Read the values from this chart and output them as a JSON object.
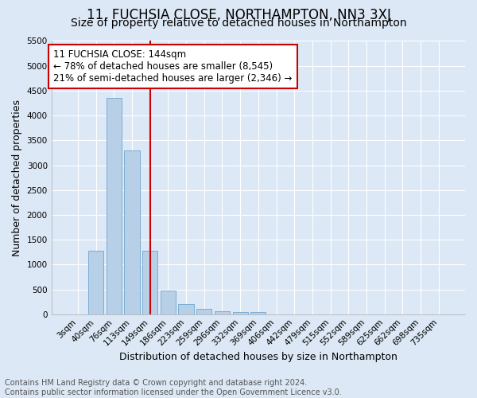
{
  "title": "11, FUCHSIA CLOSE, NORTHAMPTON, NN3 3XJ",
  "subtitle": "Size of property relative to detached houses in Northampton",
  "xlabel": "Distribution of detached houses by size in Northampton",
  "ylabel": "Number of detached properties",
  "footnote": "Contains HM Land Registry data © Crown copyright and database right 2024.\nContains public sector information licensed under the Open Government Licence v3.0.",
  "bar_labels": [
    "3sqm",
    "40sqm",
    "76sqm",
    "113sqm",
    "149sqm",
    "186sqm",
    "223sqm",
    "259sqm",
    "296sqm",
    "332sqm",
    "369sqm",
    "406sqm",
    "442sqm",
    "479sqm",
    "515sqm",
    "552sqm",
    "589sqm",
    "625sqm",
    "662sqm",
    "698sqm",
    "735sqm"
  ],
  "bar_values": [
    0,
    1270,
    4350,
    3300,
    1270,
    480,
    200,
    100,
    65,
    50,
    50,
    0,
    0,
    0,
    0,
    0,
    0,
    0,
    0,
    0,
    0
  ],
  "bar_color": "#b8cfe8",
  "bar_edge_color": "#7aadd4",
  "vline_color": "#cc0000",
  "annotation_box_text": "11 FUCHSIA CLOSE: 144sqm\n← 78% of detached houses are smaller (8,545)\n21% of semi-detached houses are larger (2,346) →",
  "annotation_box_color": "#cc0000",
  "annotation_fill": "white",
  "ylim": [
    0,
    5500
  ],
  "yticks": [
    0,
    500,
    1000,
    1500,
    2000,
    2500,
    3000,
    3500,
    4000,
    4500,
    5000,
    5500
  ],
  "background_color": "#dce8f5",
  "plot_bg_color": "#dce8f5",
  "grid_color": "white",
  "title_fontsize": 12,
  "subtitle_fontsize": 10,
  "axis_label_fontsize": 9,
  "tick_fontsize": 7.5,
  "annotation_fontsize": 8.5,
  "footnote_fontsize": 7
}
